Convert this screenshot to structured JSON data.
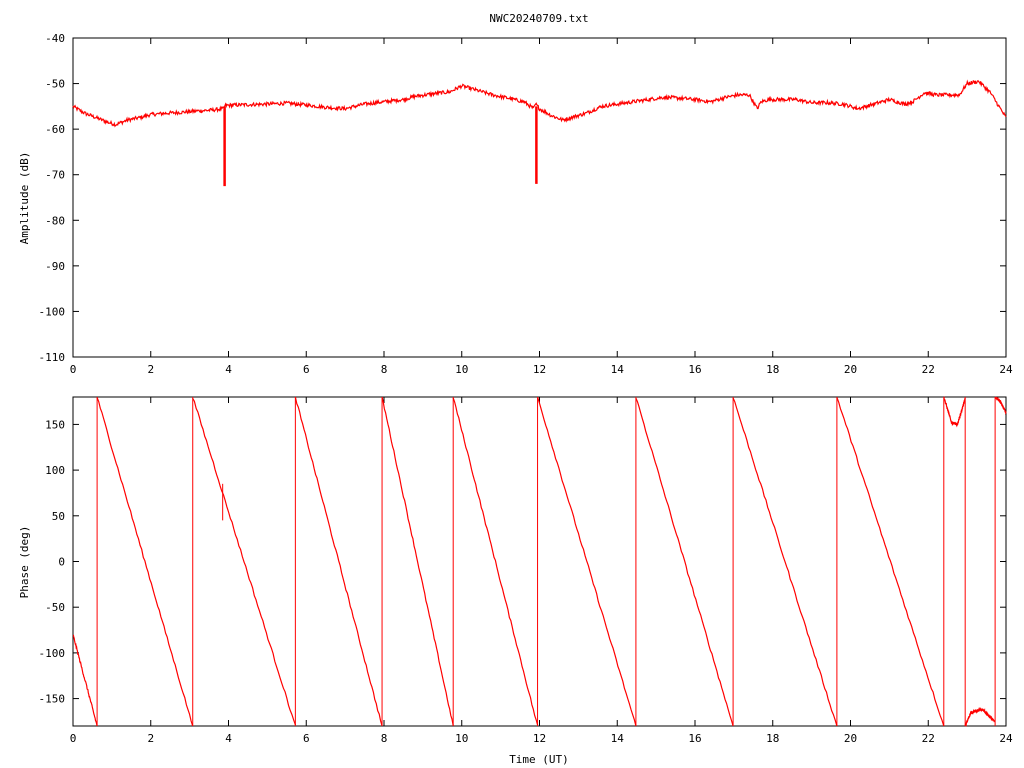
{
  "chart_data": [
    {
      "type": "line",
      "title": "NWC20240709.txt",
      "xlabel": "",
      "ylabel": "Amplitude (dB)",
      "xlim": [
        0,
        24
      ],
      "ylim": [
        -110,
        -40
      ],
      "xticks": [
        "0",
        "2",
        "4",
        "6",
        "8",
        "10",
        "12",
        "14",
        "16",
        "18",
        "20",
        "22",
        "24"
      ],
      "yticks": [
        "-40",
        "-50",
        "-60",
        "-70",
        "-80",
        "-90",
        "-100",
        "-110"
      ],
      "color": "#ff0000",
      "series": [
        {
          "x": [
            0,
            0.3,
            0.6,
            0.9,
            1.1,
            1.4,
            1.7,
            2.0,
            2.4,
            2.8,
            3.2,
            3.6,
            3.88,
            3.92,
            4.2,
            4.6,
            5.0,
            5.5,
            6.0,
            6.5,
            7.0,
            7.5,
            8.0,
            8.5,
            8.8,
            9.3,
            9.7,
            10.0,
            10.4,
            10.8,
            11.2,
            11.6,
            11.85,
            11.9,
            12.0,
            12.3,
            12.6,
            12.8,
            13.2,
            13.6,
            14.0,
            14.4,
            14.8,
            15.2,
            15.6,
            16.0,
            16.4,
            16.8,
            17.1,
            17.4,
            17.6,
            17.7,
            17.9,
            18.2,
            18.6,
            19.0,
            19.4,
            19.8,
            20.2,
            20.6,
            21.0,
            21.4,
            21.6,
            21.9,
            22.2,
            22.6,
            22.8,
            23.0,
            23.3,
            23.6,
            24.0
          ],
          "y": [
            -55,
            -56.5,
            -57.5,
            -58.5,
            -59,
            -58,
            -57.5,
            -56.8,
            -56.5,
            -56.3,
            -56,
            -55.8,
            -55.5,
            -54.8,
            -54.7,
            -54.6,
            -54.5,
            -54.3,
            -54.7,
            -55.2,
            -55.5,
            -54.5,
            -54,
            -53.5,
            -52.8,
            -52.2,
            -51.8,
            -50.5,
            -51.5,
            -52.5,
            -53.2,
            -54,
            -55.5,
            -54.5,
            -55.5,
            -57,
            -58,
            -57.5,
            -56.5,
            -55,
            -54.5,
            -54,
            -53.5,
            -53,
            -53.2,
            -53.5,
            -54,
            -53,
            -52.5,
            -52.5,
            -55.5,
            -54,
            -53.5,
            -53.5,
            -53.5,
            -54.2,
            -54.2,
            -54.5,
            -55.5,
            -54.5,
            -53.5,
            -54.5,
            -54,
            -52,
            -52.5,
            -52.5,
            -52.5,
            -50,
            -49.5,
            -52,
            -57.5
          ],
          "dropouts": [
            {
              "x": 3.9,
              "min": -72.5
            },
            {
              "x": 11.92,
              "min": -72
            }
          ]
        }
      ]
    },
    {
      "type": "line",
      "title": "",
      "xlabel": "Time (UT)",
      "ylabel": "Phase (deg)",
      "xlim": [
        0,
        24
      ],
      "ylim": [
        -180,
        180
      ],
      "xticks": [
        "0",
        "2",
        "4",
        "6",
        "8",
        "10",
        "12",
        "14",
        "16",
        "18",
        "20",
        "22",
        "24"
      ],
      "yticks": [
        "150",
        "100",
        "50",
        "0",
        "-50",
        "-100",
        "-150"
      ],
      "color": "#ff0000",
      "series": [
        {
          "segments": [
            {
              "x": [
                0,
                0.62
              ],
              "y": [
                -80,
                -180
              ]
            },
            {
              "x": [
                0.62,
                3.08
              ],
              "y": [
                180,
                -180
              ]
            },
            {
              "x": [
                3.08,
                5.72
              ],
              "y": [
                180,
                -180
              ]
            },
            {
              "x": [
                5.72,
                7.95
              ],
              "y": [
                180,
                -180
              ]
            },
            {
              "x": [
                7.95,
                9.78
              ],
              "y": [
                180,
                -180
              ]
            },
            {
              "x": [
                9.78,
                11.95
              ],
              "y": [
                180,
                -180
              ]
            },
            {
              "x": [
                11.95,
                14.48
              ],
              "y": [
                180,
                -180
              ]
            },
            {
              "x": [
                14.48,
                16.98
              ],
              "y": [
                180,
                -180
              ]
            },
            {
              "x": [
                16.98,
                19.65
              ],
              "y": [
                180,
                -180
              ]
            },
            {
              "x": [
                19.65,
                22.4
              ],
              "y": [
                180,
                -180
              ]
            },
            {
              "x": [
                22.4,
                22.6,
                22.75,
                22.95
              ],
              "y": [
                180,
                152,
                150,
                178
              ]
            },
            {
              "x": [
                22.95,
                23.1,
                23.4,
                23.7
              ],
              "y": [
                -180,
                -165,
                -162,
                -175
              ]
            },
            {
              "x": [
                23.72,
                23.85,
                24.0
              ],
              "y": [
                180,
                175,
                163
              ]
            }
          ],
          "vertical_jumps": [
            0.62,
            3.08,
            5.72,
            7.95,
            9.78,
            11.95,
            14.48,
            16.98,
            19.65,
            22.4,
            22.95,
            23.72
          ],
          "spike": {
            "x": 3.85,
            "ymin": 45,
            "ymax": 85
          }
        }
      ]
    }
  ]
}
